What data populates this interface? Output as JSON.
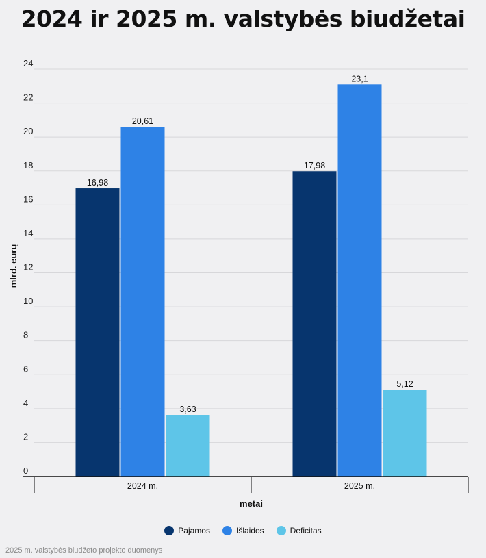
{
  "chart_data": {
    "type": "bar",
    "title": "2024 ir 2025 m. valstybės biudžetai",
    "xlabel": "metai",
    "ylabel": "mlrd. eurų",
    "categories": [
      "2024 m.",
      "2025 m."
    ],
    "ylim": [
      0,
      24
    ],
    "yticks": [
      0,
      2,
      4,
      6,
      8,
      10,
      12,
      14,
      16,
      18,
      20,
      22,
      24
    ],
    "grid": true,
    "legend_position": "bottom",
    "series": [
      {
        "name": "Pajamos",
        "values": [
          16.98,
          17.98
        ],
        "labels": [
          "16,98",
          "17,98"
        ],
        "color": "#07356e"
      },
      {
        "name": "Išlaidos",
        "values": [
          20.61,
          23.1
        ],
        "labels": [
          "20,61",
          "23,1"
        ],
        "color": "#2e82e6"
      },
      {
        "name": "Deficitas",
        "values": [
          3.63,
          5.12
        ],
        "labels": [
          "3,63",
          "5,12"
        ],
        "color": "#5ec5e8"
      }
    ]
  },
  "source": "2025 m. valstybės biudžeto projekto duomenys"
}
